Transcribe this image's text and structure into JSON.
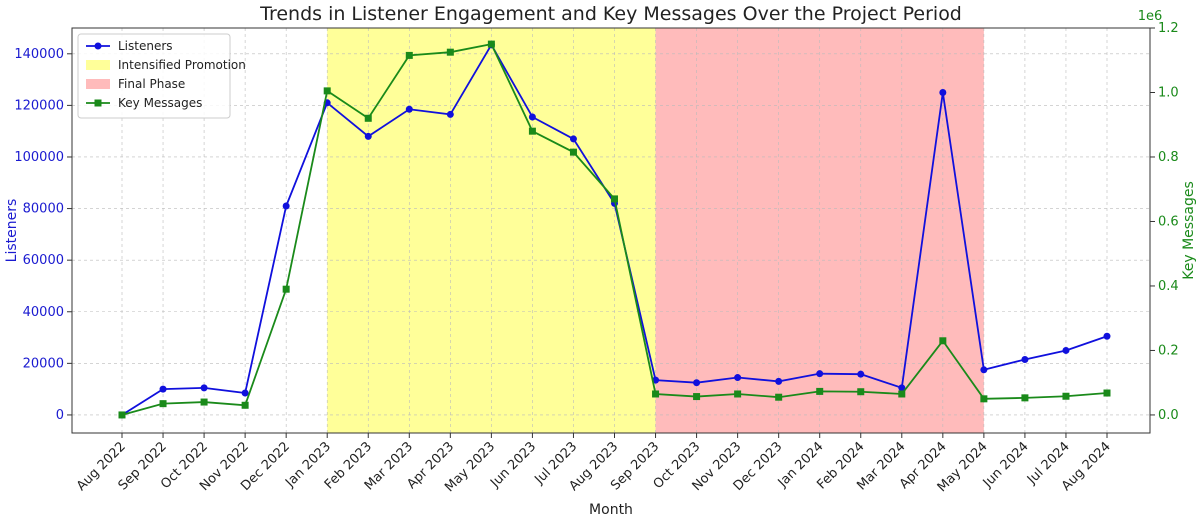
{
  "chart_data": {
    "type": "line",
    "title": "Trends in Listener Engagement and Key Messages Over the Project Period",
    "xlabel": "Month",
    "ylabel_left": "Listeners",
    "ylabel_right": "Key Messages",
    "right_axis_multiplier": "1e6",
    "categories": [
      "Aug 2022",
      "Sep 2022",
      "Oct 2022",
      "Nov 2022",
      "Dec 2022",
      "Jan 2023",
      "Feb 2023",
      "Mar 2023",
      "Apr 2023",
      "May 2023",
      "Jun 2023",
      "Jul 2023",
      "Aug 2023",
      "Sep 2023",
      "Oct 2023",
      "Nov 2023",
      "Dec 2023",
      "Jan 2024",
      "Feb 2024",
      "Mar 2024",
      "Apr 2024",
      "May 2024",
      "Jun 2024",
      "Jul 2024",
      "Aug 2024"
    ],
    "y_left": {
      "range": [
        -7000,
        150000
      ],
      "ticks": [
        0,
        20000,
        40000,
        60000,
        80000,
        100000,
        120000,
        140000
      ]
    },
    "y_right": {
      "range": [
        -0.056,
        1.2
      ],
      "ticks": [
        0.0,
        0.2,
        0.4,
        0.6,
        0.8,
        1.0,
        1.2
      ],
      "tick_labels": [
        "0.0",
        "0.2",
        "0.4",
        "0.6",
        "0.8",
        "1.0",
        "1.2"
      ]
    },
    "grid": true,
    "legend_position": "top-left",
    "spans": [
      {
        "name": "Intensified Promotion",
        "start": "Jan 2023",
        "end": "Sep 2023",
        "color": "#ffff99"
      },
      {
        "name": "Final Phase",
        "start": "Sep 2023",
        "end": "May 2024",
        "color": "#ffbbbb"
      }
    ],
    "series": [
      {
        "name": "Listeners",
        "axis": "left",
        "color": "#1010dd",
        "marker": "circle",
        "values": [
          0,
          10000,
          10500,
          8500,
          81000,
          121000,
          108000,
          118500,
          116500,
          143500,
          115500,
          107000,
          82000,
          13500,
          12500,
          14500,
          13000,
          16000,
          15800,
          10500,
          125000,
          17500,
          21500,
          25000,
          30500
        ]
      },
      {
        "name": "Key Messages",
        "axis": "right",
        "color": "#1a8a1a",
        "marker": "square",
        "values": [
          0.0,
          0.035,
          0.04,
          0.03,
          0.39,
          1.005,
          0.92,
          1.115,
          1.125,
          1.15,
          0.88,
          0.815,
          0.67,
          0.065,
          0.057,
          0.065,
          0.055,
          0.073,
          0.072,
          0.065,
          0.23,
          0.05,
          0.053,
          0.058,
          0.068
        ]
      }
    ]
  }
}
